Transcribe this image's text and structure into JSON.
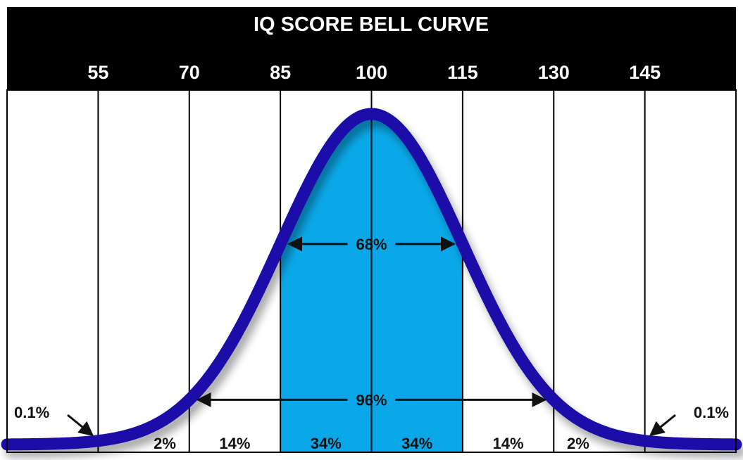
{
  "chart_data": {
    "type": "area",
    "title": "IQ SCORE BELL CURVE",
    "x_ticks": [
      55,
      70,
      85,
      100,
      115,
      130,
      145
    ],
    "xlim": [
      40,
      160
    ],
    "mean": 100,
    "sd": 15,
    "segments": [
      {
        "range": [
          40,
          55
        ],
        "label": "0.1%"
      },
      {
        "range": [
          55,
          70
        ],
        "label": "2%"
      },
      {
        "range": [
          70,
          85
        ],
        "label": "14%"
      },
      {
        "range": [
          85,
          100
        ],
        "label": "34%"
      },
      {
        "range": [
          100,
          115
        ],
        "label": "34%"
      },
      {
        "range": [
          115,
          130
        ],
        "label": "14%"
      },
      {
        "range": [
          130,
          145
        ],
        "label": "2%"
      },
      {
        "range": [
          145,
          160
        ],
        "label": "0.1%"
      }
    ],
    "ranges": [
      {
        "from": 85,
        "to": 115,
        "label": "68%"
      },
      {
        "from": 70,
        "to": 130,
        "label": "96%"
      }
    ],
    "shaded_range": [
      85,
      115
    ],
    "colors": {
      "header": "#000000",
      "curve": "#1a0fa8",
      "shade": "#0aa8e8",
      "grid": "#000000"
    }
  }
}
